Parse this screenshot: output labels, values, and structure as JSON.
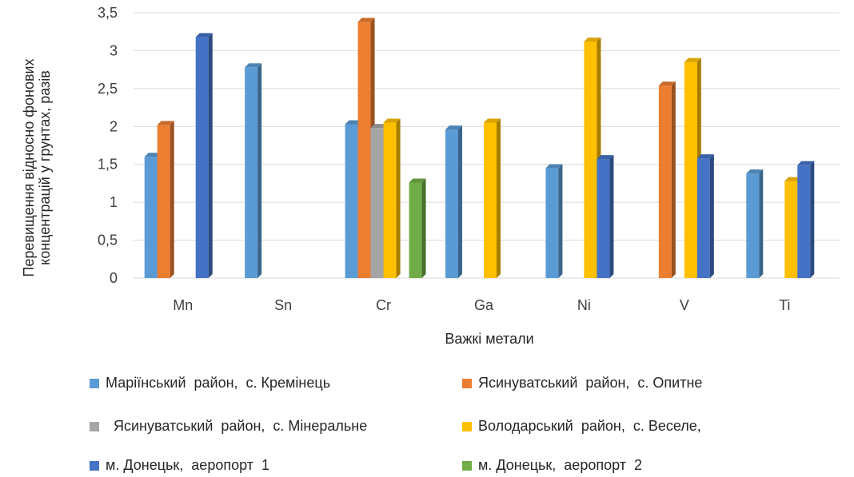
{
  "chart_data": {
    "type": "bar",
    "style": "3d-clustered-column",
    "categories": [
      "Mn",
      "Sn",
      "Cr",
      "Ga",
      "Ni",
      "V",
      "Ti"
    ],
    "xlabel": "Важкі метали",
    "ylabel_lines": [
      "Перевищення відносно фонових",
      "концентрацій  у грунтах, разів"
    ],
    "ylim": [
      0,
      3.5
    ],
    "yticks": [
      "0",
      "0,5",
      "1",
      "1,5",
      "2",
      "2,5",
      "3",
      "3,5"
    ],
    "grid": true,
    "legend_position": "bottom",
    "series": [
      {
        "name": "Маріїнський  район,  с. Кремінець",
        "color": "#5B9BD5",
        "values": [
          1.6,
          2.78,
          2.03,
          1.96,
          1.45,
          null,
          1.38
        ]
      },
      {
        "name": "Ясинуватський  район,  с. Опитне",
        "color": "#ED7D31",
        "values": [
          2.02,
          null,
          3.38,
          null,
          null,
          2.54,
          null
        ]
      },
      {
        "name": "  Ясинуватський  район,  с. Мінеральне",
        "color": "#A5A5A5",
        "values": [
          null,
          null,
          1.98,
          null,
          null,
          null,
          null
        ]
      },
      {
        "name": "Володарський  район,  с. Веселе,",
        "color": "#FFC000",
        "values": [
          null,
          null,
          2.05,
          2.05,
          3.12,
          2.85,
          1.28
        ]
      },
      {
        "name": "м. Донецьк,  аеропорт  1",
        "color": "#4472C4",
        "values": [
          3.18,
          null,
          null,
          null,
          1.57,
          1.58,
          1.49
        ]
      },
      {
        "name": "м. Донецьк,  аеропорт  2",
        "color": "#70AD47",
        "values": [
          null,
          null,
          1.26,
          null,
          null,
          null,
          null
        ]
      }
    ]
  }
}
